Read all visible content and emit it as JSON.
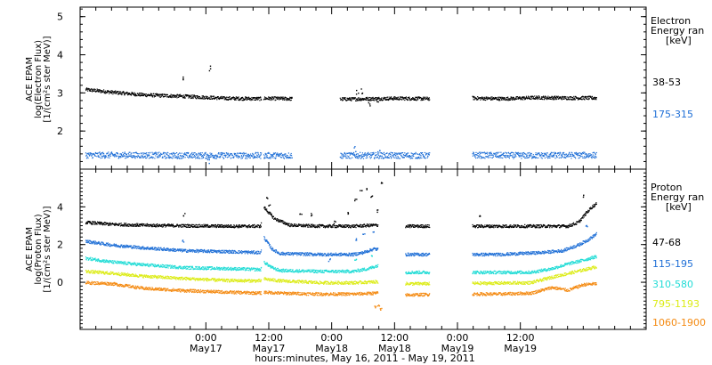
{
  "chart_data": [
    {
      "type": "scatter",
      "ylabel_lines": [
        "ACE EPAM",
        "log(Electron Flux)",
        "[1/(cm²s ster MeV)]"
      ],
      "ylim": [
        1.0,
        5.25
      ],
      "yticks": [
        2,
        3,
        4,
        5
      ],
      "legend_lines": [
        "Electron",
        "Energy ran",
        "[keV]"
      ],
      "gaps": [
        [
          34.5,
          34.9
        ],
        [
          40.4,
          49.5
        ],
        [
          66.6,
          74.8
        ]
      ],
      "series": [
        {
          "name": "38-53",
          "color": "#000000",
          "points": [
            [
              1.0,
              3.1
            ],
            [
              6,
              3.03
            ],
            [
              12,
              2.96
            ],
            [
              20,
              2.92
            ],
            [
              28,
              2.87
            ],
            [
              34.4,
              2.86
            ],
            [
              35,
              2.87
            ],
            [
              40,
              2.86
            ],
            [
              46,
              2.85
            ],
            [
              52,
              2.85
            ],
            [
              60,
              2.87
            ],
            [
              66.5,
              2.86
            ],
            [
              72,
              2.9
            ],
            [
              76,
              2.87
            ],
            [
              81,
              2.86
            ],
            [
              87,
              2.89
            ],
            [
              93,
              2.88
            ],
            [
              98.5,
              2.88
            ]
          ],
          "outliers": [
            [
              19.6,
              3.42
            ],
            [
              24.7,
              3.65
            ],
            [
              52.8,
              3.03
            ],
            [
              53.6,
              3.06
            ],
            [
              55.1,
              2.74
            ],
            [
              56.6,
              2.83
            ]
          ]
        },
        {
          "name": "175-315",
          "color": "#1f6fd6",
          "points": [
            [
              1.0,
              1.38
            ],
            [
              10,
              1.38
            ],
            [
              20,
              1.37
            ],
            [
              34.4,
              1.37
            ],
            [
              35,
              1.37
            ],
            [
              45,
              1.37
            ],
            [
              55,
              1.37
            ],
            [
              66.5,
              1.37
            ],
            [
              75,
              1.38
            ],
            [
              85,
              1.37
            ],
            [
              98.5,
              1.38
            ]
          ],
          "outliers": [
            [
              24.4,
              1.2
            ],
            [
              52.3,
              1.55
            ],
            [
              56.9,
              1.45
            ]
          ]
        }
      ]
    },
    {
      "type": "scatter",
      "ylabel_lines": [
        "ACE EPAM",
        "log(Proton Flux)",
        "[1/(cm²s ster MeV)]"
      ],
      "ylim": [
        -2.5,
        6.0
      ],
      "yticks": [
        0,
        2,
        4
      ],
      "legend_lines": [
        "Proton",
        "Energy ran",
        "[keV]"
      ],
      "gaps": [
        [
          34.5,
          35.0
        ],
        [
          56.8,
          62.0
        ],
        [
          66.6,
          74.8
        ]
      ],
      "series": [
        {
          "name": "47-68",
          "color": "#000000",
          "points": [
            [
              1.0,
              3.2
            ],
            [
              6,
              3.1
            ],
            [
              12,
              3.05
            ],
            [
              20,
              3.02
            ],
            [
              28,
              3.0
            ],
            [
              34.4,
              3.0
            ],
            [
              35,
              4.0
            ],
            [
              37,
              3.4
            ],
            [
              40,
              3.05
            ],
            [
              46,
              3.0
            ],
            [
              52,
              3.0
            ],
            [
              56,
              3.05
            ],
            [
              62,
              3.0
            ],
            [
              70,
              3.0
            ],
            [
              80,
              3.0
            ],
            [
              88,
              3.0
            ],
            [
              93,
              3.0
            ],
            [
              95,
              3.2
            ],
            [
              96.5,
              3.7
            ],
            [
              97.5,
              4.0
            ],
            [
              98.5,
              4.2
            ]
          ],
          "outliers": [
            [
              19.8,
              3.6
            ],
            [
              35.6,
              4.5
            ],
            [
              36.0,
              4.1
            ],
            [
              42.0,
              3.7
            ],
            [
              44.0,
              3.6
            ],
            [
              48.5,
              3.2
            ],
            [
              51.0,
              3.7
            ],
            [
              52.5,
              4.4
            ],
            [
              53.5,
              4.9
            ],
            [
              54.5,
              5.0
            ],
            [
              55.5,
              4.6
            ],
            [
              56.5,
              3.8
            ],
            [
              57.5,
              5.3
            ],
            [
              76.3,
              3.5
            ],
            [
              95.8,
              4.6
            ]
          ]
        },
        {
          "name": "115-195",
          "color": "#1f6fd6",
          "points": [
            [
              1.0,
              2.2
            ],
            [
              6,
              2.0
            ],
            [
              12,
              1.85
            ],
            [
              20,
              1.7
            ],
            [
              28,
              1.65
            ],
            [
              34.4,
              1.6
            ],
            [
              35,
              2.4
            ],
            [
              36.5,
              1.8
            ],
            [
              38,
              1.55
            ],
            [
              46,
              1.5
            ],
            [
              52,
              1.5
            ],
            [
              54,
              1.6
            ],
            [
              56,
              1.8
            ],
            [
              62,
              1.5
            ],
            [
              70,
              1.5
            ],
            [
              80,
              1.5
            ],
            [
              88,
              1.6
            ],
            [
              92,
              1.7
            ],
            [
              95,
              2.0
            ],
            [
              97,
              2.3
            ],
            [
              98.5,
              2.6
            ]
          ],
          "outliers": [
            [
              19.5,
              2.2
            ],
            [
              47.5,
              1.2
            ],
            [
              52.5,
              2.3
            ],
            [
              54.0,
              2.6
            ],
            [
              55.8,
              2.7
            ],
            [
              96.5,
              3.0
            ]
          ]
        },
        {
          "name": "310-580",
          "color": "#22dcd6",
          "points": [
            [
              1.0,
              1.3
            ],
            [
              6,
              1.1
            ],
            [
              12,
              0.95
            ],
            [
              20,
              0.8
            ],
            [
              28,
              0.75
            ],
            [
              34.4,
              0.7
            ],
            [
              35,
              1.1
            ],
            [
              36.5,
              0.8
            ],
            [
              38,
              0.65
            ],
            [
              46,
              0.6
            ],
            [
              52,
              0.6
            ],
            [
              55,
              0.75
            ],
            [
              56.5,
              0.9
            ],
            [
              62,
              0.55
            ],
            [
              70,
              0.55
            ],
            [
              80,
              0.55
            ],
            [
              86,
              0.55
            ],
            [
              90,
              0.75
            ],
            [
              93,
              1.0
            ],
            [
              96,
              1.2
            ],
            [
              98.5,
              1.4
            ]
          ],
          "outliers": [
            [
              52.5,
              1.2
            ],
            [
              55.5,
              1.45
            ]
          ]
        },
        {
          "name": "795-1193",
          "color": "#dcec17",
          "points": [
            [
              1.0,
              0.6
            ],
            [
              6,
              0.5
            ],
            [
              12,
              0.35
            ],
            [
              20,
              0.22
            ],
            [
              28,
              0.12
            ],
            [
              34.4,
              0.1
            ],
            [
              35,
              0.2
            ],
            [
              38,
              0.1
            ],
            [
              46,
              0.0
            ],
            [
              52,
              0.0
            ],
            [
              56.5,
              0.05
            ],
            [
              62,
              -0.05
            ],
            [
              70,
              -0.05
            ],
            [
              80,
              -0.02
            ],
            [
              86,
              0.0
            ],
            [
              90,
              0.3
            ],
            [
              94,
              0.55
            ],
            [
              98.5,
              0.85
            ]
          ],
          "outliers": []
        },
        {
          "name": "1060-1900",
          "color": "#f48a12",
          "points": [
            [
              1.0,
              0.0
            ],
            [
              6,
              -0.05
            ],
            [
              12,
              -0.3
            ],
            [
              20,
              -0.42
            ],
            [
              28,
              -0.5
            ],
            [
              34.4,
              -0.55
            ],
            [
              35,
              -0.5
            ],
            [
              38,
              -0.55
            ],
            [
              46,
              -0.6
            ],
            [
              52,
              -0.6
            ],
            [
              56.5,
              -0.55
            ],
            [
              62,
              -0.65
            ],
            [
              70,
              -0.6
            ],
            [
              80,
              -0.6
            ],
            [
              86,
              -0.55
            ],
            [
              90,
              -0.25
            ],
            [
              93,
              -0.4
            ],
            [
              96,
              -0.1
            ],
            [
              98.5,
              -0.05
            ]
          ],
          "outliers": [
            [
              56.2,
              -1.3
            ],
            [
              56.8,
              -1.2
            ],
            [
              57.3,
              -1.4
            ]
          ]
        }
      ]
    }
  ],
  "x_axis": {
    "range_hours": [
      0,
      108
    ],
    "major_ticks": [
      {
        "hour": 24,
        "time": "0:00",
        "date": "May17"
      },
      {
        "hour": 36,
        "time": "12:00",
        "date": "May17"
      },
      {
        "hour": 48,
        "time": "0:00",
        "date": "May18"
      },
      {
        "hour": 60,
        "time": "12:00",
        "date": "May18"
      },
      {
        "hour": 72,
        "time": "0:00",
        "date": "May19"
      },
      {
        "hour": 84,
        "time": "12:00",
        "date": "May19"
      }
    ],
    "minor_tick_hours": 3,
    "xlabel": "hours:minutes, May 16, 2011 - May 19, 2011"
  },
  "colors": {
    "axis": "#000000",
    "background": "#ffffff"
  }
}
